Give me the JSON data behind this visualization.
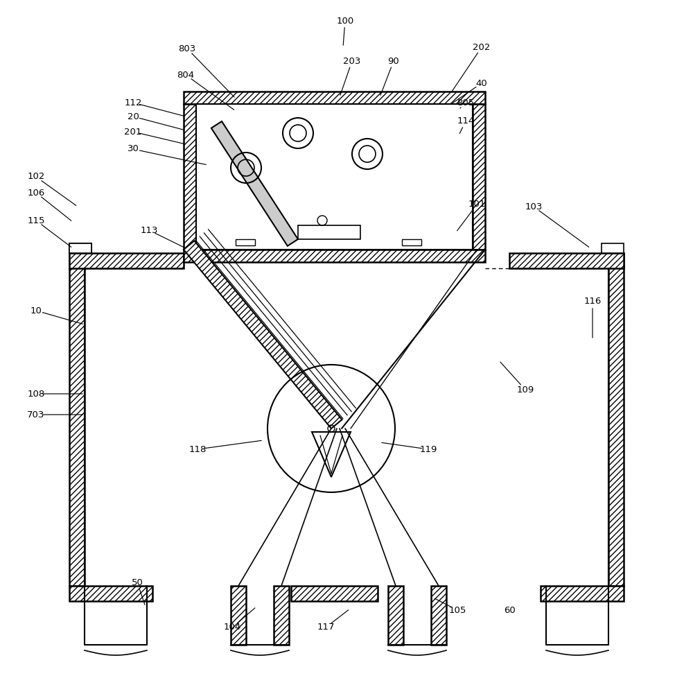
{
  "bg_color": "#ffffff",
  "fig_width": 10.0,
  "fig_height": 9.75,
  "dpi": 100
}
